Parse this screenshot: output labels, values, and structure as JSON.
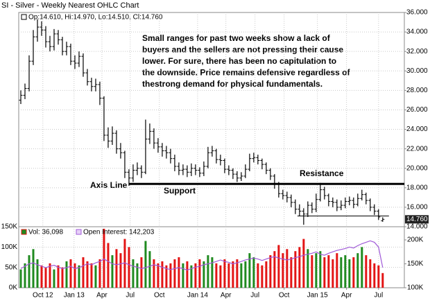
{
  "chart_data": [
    {
      "type": "ohlc",
      "title": "SI - Silver - Weekly Nearest OHLC Chart",
      "legend_label": "Op:14.610, Hi:14.970, Lo:14.510, Cl:14.760",
      "last_label": "14.760",
      "color": "#000000",
      "open": [
        27.0,
        27.5,
        28.2,
        31.0,
        33.5,
        34.5,
        34.2,
        33.0,
        32.5,
        33.8,
        33.2,
        32.0,
        32.5,
        31.0,
        30.8,
        31.5,
        29.8,
        28.9,
        28.4,
        28.6,
        27.2,
        23.4,
        22.8,
        23.6,
        22.0,
        21.6,
        19.6,
        19.0,
        19.8,
        20.0,
        19.6,
        23.0,
        23.8,
        22.6,
        22.2,
        21.8,
        21.6,
        21.0,
        20.2,
        19.8,
        19.9,
        19.6,
        20.0,
        19.8,
        19.5,
        20.2,
        21.6,
        21.8,
        20.9,
        20.8,
        19.9,
        19.8,
        19.4,
        19.0,
        19.2,
        19.9,
        21.0,
        21.1,
        20.8,
        20.4,
        19.8,
        19.2,
        18.4,
        17.4,
        17.2,
        17.0,
        16.5,
        15.8,
        15.6,
        15.3,
        16.2,
        15.8,
        16.8,
        17.8,
        17.2,
        16.6,
        16.5,
        16.0,
        16.2,
        16.6,
        16.7,
        16.3,
        16.9,
        17.3,
        16.7,
        16.0,
        15.6,
        14.61
      ],
      "high": [
        28.0,
        28.7,
        31.6,
        34.2,
        35.3,
        35.1,
        34.6,
        33.6,
        34.3,
        34.2,
        33.5,
        33.0,
        32.8,
        31.6,
        32.0,
        31.8,
        30.2,
        29.3,
        29.2,
        28.9,
        27.4,
        24.2,
        24.3,
        23.9,
        22.6,
        21.8,
        19.9,
        20.4,
        20.6,
        20.3,
        25.0,
        24.6,
        24.1,
        23.1,
        22.6,
        22.3,
        22.0,
        21.4,
        20.6,
        20.4,
        20.3,
        20.5,
        20.4,
        20.1,
        20.7,
        22.2,
        22.3,
        22.0,
        21.4,
        21.0,
        20.3,
        20.0,
        19.7,
        19.6,
        20.4,
        21.5,
        21.6,
        21.4,
        21.0,
        20.6,
        20.0,
        19.4,
        18.6,
        17.8,
        17.6,
        17.3,
        16.8,
        16.3,
        15.9,
        16.6,
        16.5,
        17.4,
        18.5,
        18.1,
        17.4,
        17.0,
        16.8,
        16.7,
        17.0,
        17.1,
        17.0,
        17.4,
        17.8,
        17.5,
        16.9,
        16.3,
        15.8,
        14.97
      ],
      "low": [
        26.6,
        27.1,
        27.9,
        30.6,
        33.0,
        33.6,
        32.4,
        32.0,
        32.1,
        32.7,
        31.6,
        31.6,
        30.6,
        30.2,
        30.4,
        29.4,
        28.5,
        27.9,
        27.9,
        26.5,
        22.8,
        22.1,
        22.4,
        21.5,
        21.0,
        19.0,
        18.2,
        18.6,
        19.3,
        19.0,
        19.4,
        22.5,
        22.0,
        21.6,
        21.2,
        21.0,
        20.5,
        19.7,
        19.3,
        19.3,
        19.1,
        19.2,
        19.3,
        19.1,
        19.2,
        20.0,
        21.2,
        20.5,
        20.3,
        19.5,
        19.3,
        18.9,
        18.6,
        18.7,
        19.0,
        19.7,
        20.6,
        20.4,
        19.9,
        19.4,
        18.8,
        17.9,
        17.0,
        16.8,
        16.5,
        16.0,
        15.3,
        15.1,
        14.2,
        15.0,
        15.4,
        15.5,
        16.6,
        16.8,
        16.1,
        16.0,
        15.6,
        15.7,
        15.9,
        16.2,
        15.9,
        16.1,
        16.7,
        16.3,
        15.6,
        15.2,
        14.7,
        14.51
      ],
      "close": [
        27.5,
        28.2,
        31.0,
        33.5,
        34.5,
        34.2,
        33.0,
        32.5,
        33.8,
        33.2,
        32.0,
        32.5,
        31.0,
        30.8,
        31.5,
        29.8,
        28.9,
        28.4,
        28.6,
        27.2,
        23.4,
        22.8,
        23.6,
        22.0,
        21.6,
        19.6,
        19.0,
        19.8,
        20.0,
        19.6,
        23.0,
        23.8,
        22.6,
        22.2,
        21.8,
        21.6,
        21.0,
        20.2,
        19.8,
        19.9,
        19.6,
        20.0,
        19.8,
        19.5,
        20.2,
        21.6,
        21.8,
        20.9,
        20.8,
        19.9,
        19.8,
        19.4,
        19.0,
        19.2,
        19.9,
        21.0,
        21.1,
        20.8,
        20.4,
        19.8,
        19.2,
        18.4,
        17.4,
        17.2,
        17.0,
        16.5,
        15.8,
        15.6,
        15.3,
        16.2,
        15.8,
        16.8,
        17.8,
        17.2,
        16.6,
        16.5,
        16.0,
        16.2,
        16.6,
        16.7,
        16.3,
        16.9,
        17.3,
        16.7,
        16.0,
        15.6,
        15.0,
        14.76
      ],
      "xlim": [
        -0.5,
        92.2
      ],
      "xticks": [
        {
          "value": 5.3,
          "label": "Oct 12"
        },
        {
          "value": 12.8,
          "label": "Jan 13"
        },
        {
          "value": 19.5,
          "label": "Apr"
        },
        {
          "value": 26.3,
          "label": "Jul"
        },
        {
          "value": 33.3,
          "label": "Oct"
        },
        {
          "value": 42.5,
          "label": "Jan 14"
        },
        {
          "value": 49.3,
          "label": "Apr"
        },
        {
          "value": 56.3,
          "label": "Jul"
        },
        {
          "value": 63.3,
          "label": "Oct"
        },
        {
          "value": 71.3,
          "label": "Jan 15"
        },
        {
          "value": 78.3,
          "label": "Apr"
        },
        {
          "value": 86,
          "label": "Jul"
        }
      ],
      "ylim": [
        14,
        36
      ],
      "yticks": [
        {
          "value": 14,
          "label": "14.000"
        },
        {
          "value": 16,
          "label": "16.000"
        },
        {
          "value": 18,
          "label": "18.000"
        },
        {
          "value": 20,
          "label": "20.000"
        },
        {
          "value": 22,
          "label": "22.000"
        },
        {
          "value": 24,
          "label": "24.000"
        },
        {
          "value": 26,
          "label": "26.000"
        },
        {
          "value": 28,
          "label": "28.000"
        },
        {
          "value": 30,
          "label": "30.000"
        },
        {
          "value": 32,
          "label": "32.000"
        },
        {
          "value": 34,
          "label": "34.000"
        },
        {
          "value": 36,
          "label": "36.000"
        }
      ],
      "grid": true,
      "reference_lines": [
        {
          "value": 18.4,
          "start": 26,
          "end": 92.2
        },
        {
          "value": 15.1,
          "start": 66.5,
          "end": 88.5
        }
      ],
      "annotations": {
        "note": [
          "Small ranges for past two weeks show a lack of",
          "buyers and the sellers are not pressing their cause",
          "lower.  For sure, there has been no capitulation to",
          "the downside.  Price remains defensive regardless of",
          "thestrong demand for physical fundamentals."
        ],
        "axis_line": "Axis Line",
        "support": "Support",
        "resistance": "Resistance"
      }
    },
    {
      "type": "volume",
      "up_color": "#1f8a1f",
      "down_color": "#e31414",
      "ylim": [
        0,
        150000
      ],
      "yticks": [
        {
          "value": 0,
          "label": "0K"
        },
        {
          "value": 50000,
          "label": "50K"
        },
        {
          "value": 100000,
          "label": "100K"
        },
        {
          "value": 150000,
          "label": "150K"
        }
      ],
      "y2lim": [
        100000,
        227500
      ],
      "y2ticks": [
        {
          "value": 100000,
          "label": "100K"
        },
        {
          "value": 150000,
          "label": "150K"
        },
        {
          "value": 200000,
          "label": "200K"
        }
      ],
      "grid": true,
      "series": [
        {
          "name": "Vol: 36,098",
          "values": [
            45000,
            60000,
            80000,
            95000,
            70000,
            55000,
            50000,
            60000,
            45000,
            55000,
            50000,
            65000,
            70000,
            60000,
            55000,
            75000,
            65000,
            60000,
            55000,
            70000,
            145000,
            110000,
            80000,
            95000,
            85000,
            120000,
            100000,
            70000,
            60000,
            75000,
            115000,
            90000,
            70000,
            60000,
            65000,
            55000,
            60000,
            70000,
            75000,
            60000,
            65000,
            55000,
            60000,
            70000,
            65000,
            80000,
            75000,
            60000,
            55000,
            70000,
            60000,
            65000,
            70000,
            60000,
            65000,
            85000,
            75000,
            60000,
            55000,
            65000,
            80000,
            90000,
            105000,
            85000,
            95000,
            75000,
            90000,
            100000,
            120000,
            95000,
            80000,
            85000,
            90000,
            75000,
            80000,
            70000,
            85000,
            75000,
            80000,
            70000,
            75000,
            85000,
            100000,
            80000,
            70000,
            60000,
            55000,
            36098
          ]
        },
        {
          "name": "Open Interest: 142,203",
          "axis": "y2",
          "color": "#a05ad8",
          "values": [
            140000,
            145000,
            150000,
            152000,
            148000,
            145000,
            142000,
            145000,
            147000,
            143000,
            140000,
            142000,
            145000,
            140000,
            142000,
            146000,
            150000,
            148000,
            152000,
            155000,
            160000,
            155000,
            150000,
            148000,
            150000,
            152000,
            148000,
            145000,
            143000,
            140000,
            142000,
            145000,
            148000,
            146000,
            143000,
            140000,
            138000,
            140000,
            142000,
            140000,
            137000,
            140000,
            143000,
            145000,
            148000,
            150000,
            152000,
            155000,
            158000,
            155000,
            153000,
            150000,
            152000,
            155000,
            158000,
            160000,
            162000,
            160000,
            157000,
            160000,
            163000,
            165000,
            162000,
            160000,
            158000,
            160000,
            163000,
            165000,
            168000,
            170000,
            172000,
            175000,
            170000,
            168000,
            172000,
            175000,
            178000,
            180000,
            182000,
            185000,
            183000,
            188000,
            192000,
            195000,
            198000,
            195000,
            185000,
            142203
          ]
        }
      ]
    }
  ]
}
